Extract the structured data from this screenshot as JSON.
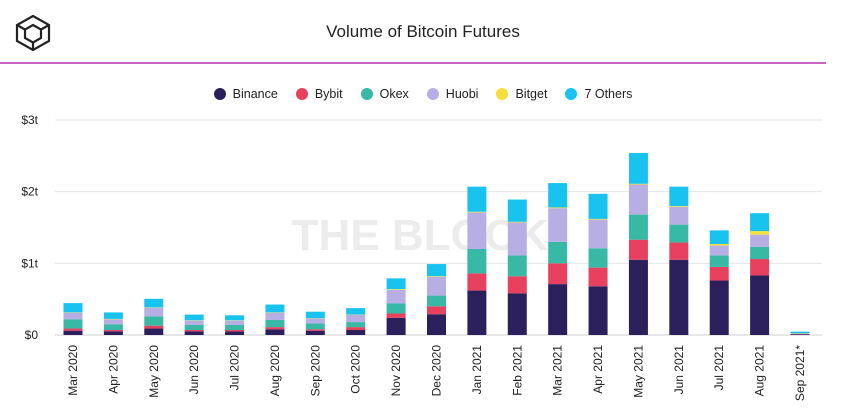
{
  "header": {
    "title": "Volume of Bitcoin Futures",
    "logo_icon": "the-block-cube-logo"
  },
  "watermark": "THE BLOCK",
  "chart_data": {
    "type": "bar",
    "stacked": true,
    "title": "Volume of Bitcoin Futures",
    "xlabel": "",
    "ylabel": "",
    "ylim": [
      0,
      3
    ],
    "y_ticks": [
      {
        "value": 0,
        "label": "$0"
      },
      {
        "value": 1,
        "label": "$1t"
      },
      {
        "value": 2,
        "label": "$2t"
      },
      {
        "value": 3,
        "label": "$3t"
      }
    ],
    "grid": true,
    "legend_position": "top-center",
    "categories": [
      "Mar 2020",
      "Apr 2020",
      "May 2020",
      "Jun 2020",
      "Jul 2020",
      "Aug 2020",
      "Sep 2020",
      "Oct 2020",
      "Nov 2020",
      "Dec 2020",
      "Jan 2021",
      "Feb 2021",
      "Mar 2021",
      "Apr 2021",
      "May 2021",
      "Jun 2021",
      "Jul 2021",
      "Aug 2021",
      "Sep 2021*"
    ],
    "series": [
      {
        "name": "Binance",
        "color": "#2b1f5c",
        "values": [
          0.06,
          0.05,
          0.09,
          0.05,
          0.05,
          0.08,
          0.06,
          0.07,
          0.24,
          0.29,
          0.62,
          0.58,
          0.71,
          0.68,
          1.05,
          1.05,
          0.76,
          0.83,
          0.01
        ]
      },
      {
        "name": "Bybit",
        "color": "#e8415f",
        "values": [
          0.03,
          0.02,
          0.04,
          0.02,
          0.02,
          0.03,
          0.02,
          0.04,
          0.06,
          0.11,
          0.24,
          0.24,
          0.29,
          0.26,
          0.28,
          0.24,
          0.19,
          0.23,
          0.005
        ]
      },
      {
        "name": "Okex",
        "color": "#38b9a6",
        "values": [
          0.13,
          0.08,
          0.13,
          0.07,
          0.07,
          0.1,
          0.08,
          0.07,
          0.14,
          0.15,
          0.34,
          0.29,
          0.3,
          0.27,
          0.35,
          0.25,
          0.16,
          0.17,
          0.005
        ]
      },
      {
        "name": "Huobi",
        "color": "#b7aee3",
        "values": [
          0.09,
          0.07,
          0.12,
          0.06,
          0.06,
          0.1,
          0.07,
          0.1,
          0.19,
          0.26,
          0.51,
          0.46,
          0.47,
          0.4,
          0.42,
          0.25,
          0.14,
          0.17,
          0.005
        ]
      },
      {
        "name": "Bitget",
        "color": "#f5e03b",
        "values": [
          0.005,
          0.005,
          0.005,
          0.005,
          0.005,
          0.005,
          0.005,
          0.005,
          0.01,
          0.01,
          0.01,
          0.01,
          0.01,
          0.01,
          0.01,
          0.01,
          0.02,
          0.05,
          0.002
        ]
      },
      {
        "name": "7 Others",
        "color": "#18c3ef",
        "values": [
          0.13,
          0.09,
          0.12,
          0.08,
          0.07,
          0.11,
          0.09,
          0.09,
          0.15,
          0.17,
          0.35,
          0.31,
          0.34,
          0.35,
          0.43,
          0.27,
          0.19,
          0.25,
          0.02
        ]
      }
    ]
  }
}
